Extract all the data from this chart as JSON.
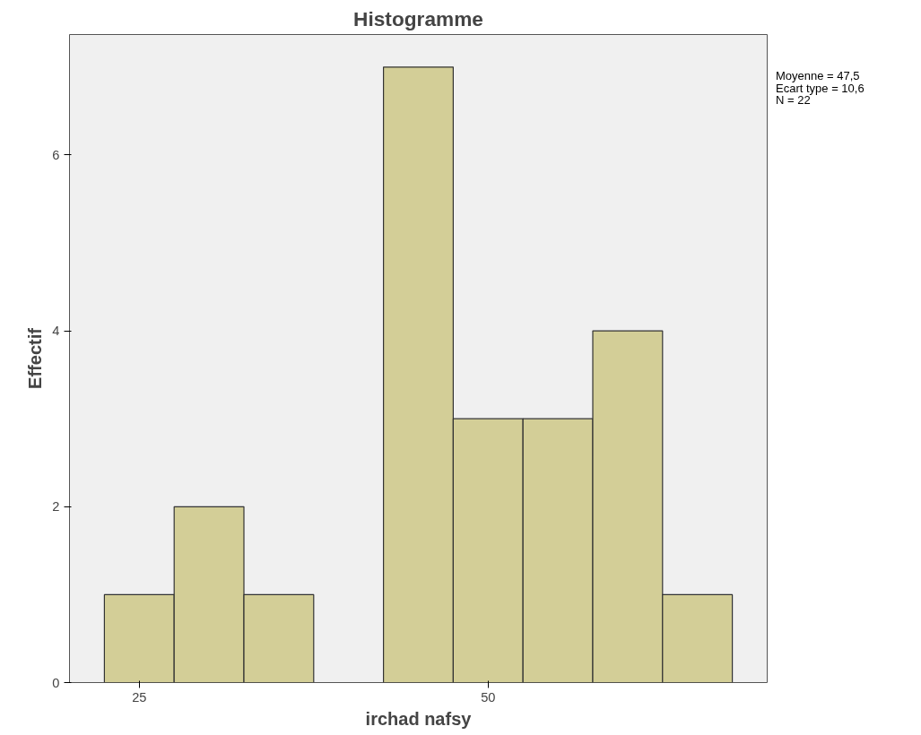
{
  "chart_data": {
    "type": "histogram",
    "title": "Histogramme",
    "xlabel": "irchad nafsy",
    "ylabel": "Effectif",
    "bins": [
      22.5,
      27.5,
      32.5,
      37.5,
      42.5,
      47.5,
      52.5,
      57.5,
      62.5,
      67.5
    ],
    "values": [
      1,
      2,
      1,
      0,
      7,
      3,
      3,
      4,
      1
    ],
    "color": "#d3ce97",
    "xlim": [
      20,
      70
    ],
    "ylim": [
      0,
      7.37
    ],
    "xticks": [
      25,
      50
    ],
    "yticks": [
      0,
      2,
      4,
      6
    ],
    "grid": false,
    "annotations": [
      "Moyenne = 47,5",
      "Ecart type = 10,6",
      "N = 22"
    ]
  }
}
